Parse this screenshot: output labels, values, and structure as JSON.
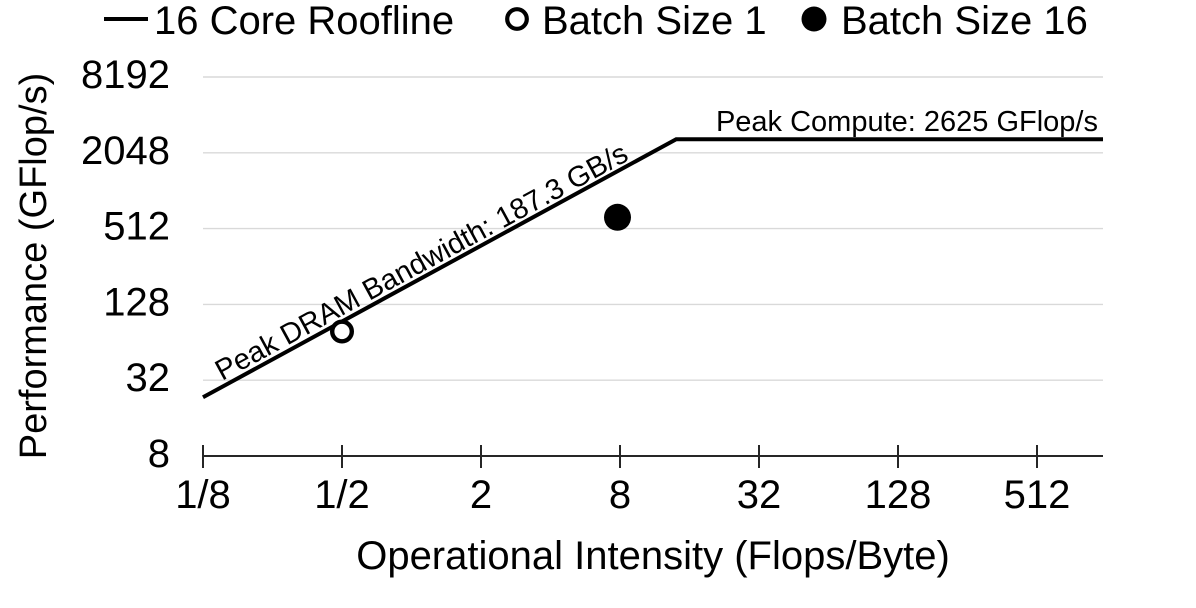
{
  "legend": {
    "items": [
      {
        "marker": "line",
        "label": "16 Core Roofline"
      },
      {
        "marker": "open-circle",
        "label": "Batch Size 1"
      },
      {
        "marker": "filled-circle",
        "label": "Batch Size 16"
      }
    ]
  },
  "chart_data": {
    "type": "line",
    "subtype": "roofline",
    "title": "",
    "xlabel": "Operational Intensity (Flops/Byte)",
    "ylabel": "Performance (GFlop/s)",
    "x_scale": "log4",
    "y_scale": "log4",
    "xlim": [
      0.125,
      980
    ],
    "ylim": [
      8,
      8192
    ],
    "grid": "horizontal-only",
    "legend_position": "top",
    "x_ticks": [
      {
        "value": 0.125,
        "label": "1/8"
      },
      {
        "value": 0.5,
        "label": "1/2"
      },
      {
        "value": 2,
        "label": "2"
      },
      {
        "value": 8,
        "label": "8"
      },
      {
        "value": 32,
        "label": "32"
      },
      {
        "value": 128,
        "label": "128"
      },
      {
        "value": 512,
        "label": "512"
      }
    ],
    "y_ticks": [
      {
        "value": 8,
        "label": "8"
      },
      {
        "value": 32,
        "label": "32"
      },
      {
        "value": 128,
        "label": "128"
      },
      {
        "value": 512,
        "label": "512"
      },
      {
        "value": 2048,
        "label": "2048"
      },
      {
        "value": 8192,
        "label": "8192"
      }
    ],
    "roofline": {
      "series_name": "16 Core Roofline",
      "peak_dram_bandwidth_gb_s": 187.3,
      "peak_compute_gflop_s": 2625,
      "ridge_point_oi": 14.0,
      "bandwidth_label": "Peak DRAM Bandwidth: 187.3 GB/s",
      "compute_label": "Peak Compute: 2625 GFlop/s"
    },
    "series": [
      {
        "name": "Batch Size 1",
        "marker": "open-circle",
        "points": [
          {
            "x": 0.5,
            "y": 78
          }
        ]
      },
      {
        "name": "Batch Size 16",
        "marker": "filled-circle",
        "points": [
          {
            "x": 7.8,
            "y": 630
          }
        ]
      }
    ]
  },
  "colors": {
    "line": "#000000",
    "grid": "#d9d9d9",
    "axis": "#262626",
    "background": "#ffffff",
    "marker_fill": "#000000",
    "text": "#000000"
  }
}
